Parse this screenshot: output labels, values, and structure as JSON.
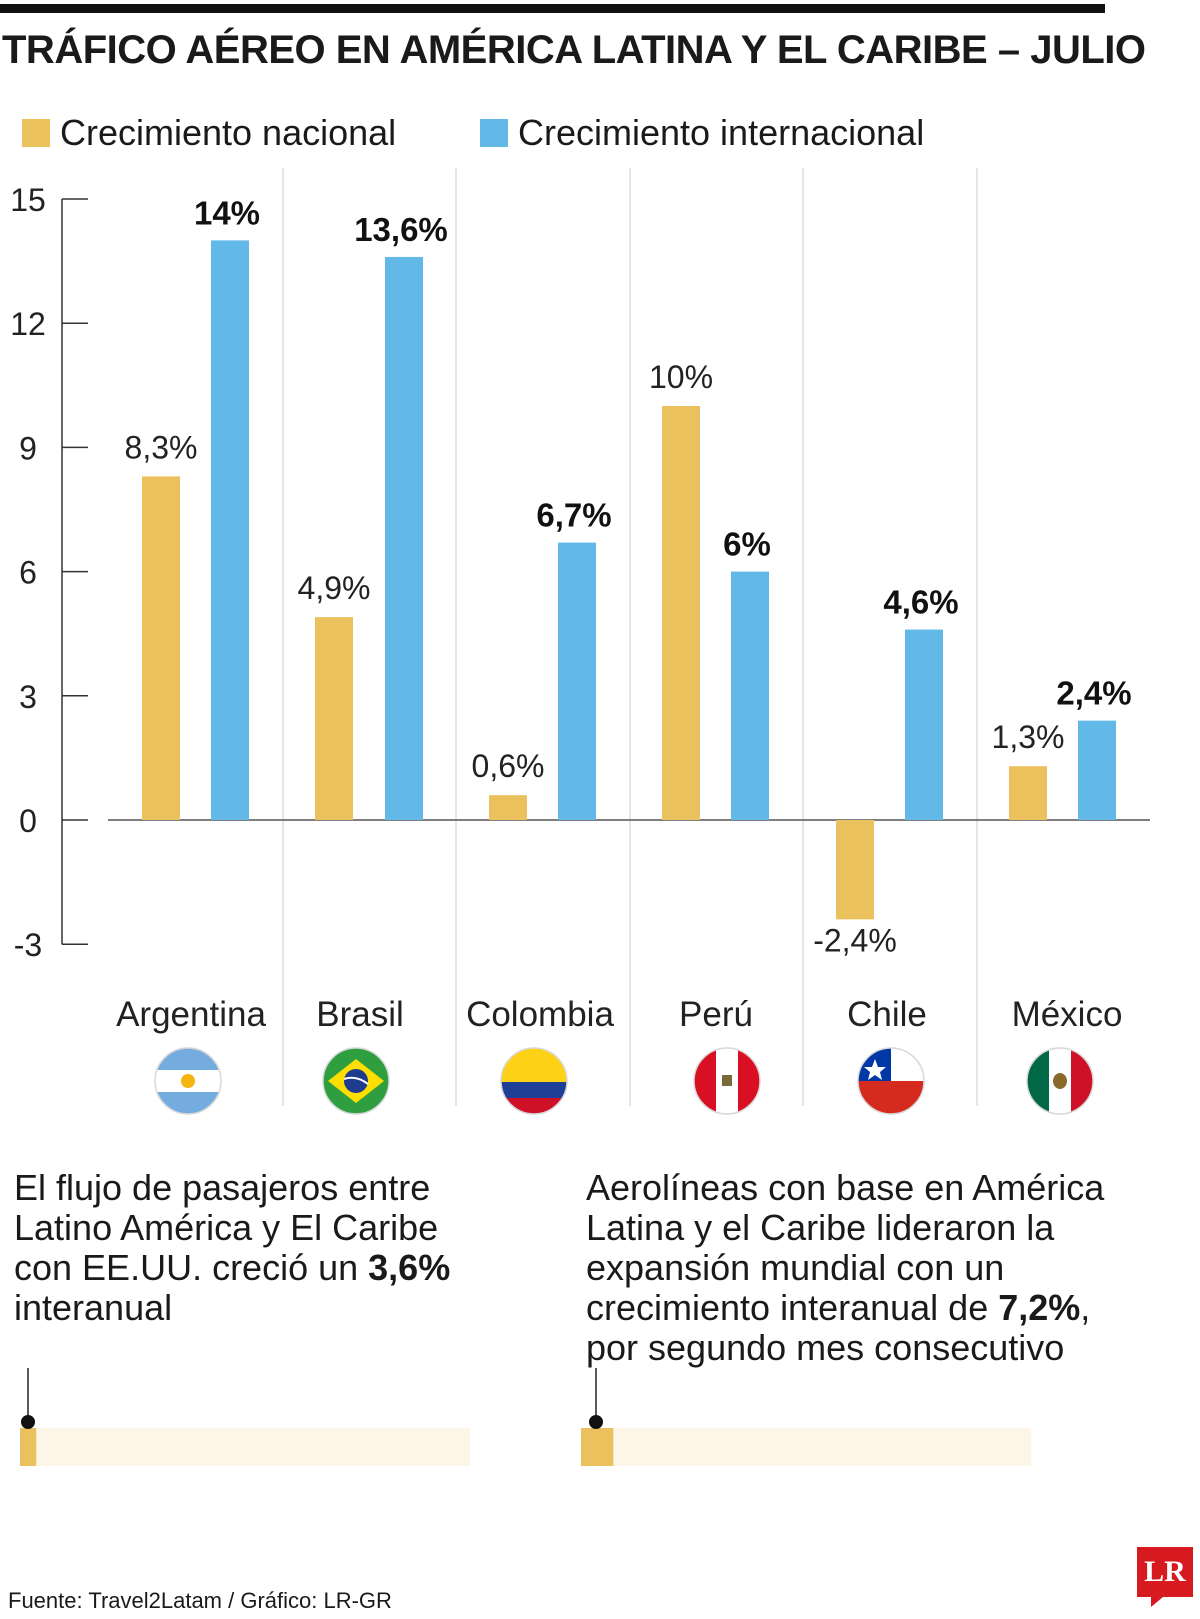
{
  "title": "TRÁFICO AÉREO EN AMÉRICA LATINA Y EL CARIBE – JULIO",
  "colors": {
    "nacional": "#EAC15C",
    "internacional": "#62B8E6",
    "bar_track": "#FDF6E8"
  },
  "chart_data": {
    "type": "bar",
    "title": "TRÁFICO AÉREO EN AMÉRICA LATINA Y EL CARIBE – JULIO",
    "categories": [
      "Argentina",
      "Brasil",
      "Colombia",
      "Perú",
      "Chile",
      "México"
    ],
    "series": [
      {
        "name": "Crecimiento nacional",
        "values": [
          8.3,
          4.9,
          0.6,
          10,
          -2.4,
          1.3
        ],
        "labels": [
          "8,3%",
          "4,9%",
          "0,6%",
          "10%",
          "-2,4%",
          "1,3%"
        ]
      },
      {
        "name": "Crecimiento internacional",
        "values": [
          14,
          13.6,
          6.7,
          6,
          4.6,
          2.4
        ],
        "labels": [
          "14%",
          "13,6%",
          "6,7%",
          "6%",
          "4,6%",
          "2,4%"
        ]
      }
    ],
    "yticks": [
      15,
      12,
      9,
      6,
      3,
      0,
      -3
    ],
    "ylim": [
      -3,
      15
    ],
    "xlabel": "",
    "ylabel": "",
    "legend": "top"
  },
  "notes": [
    {
      "before": "El flujo de pasajeros entre Latino América y El Caribe con EE.UU. creció un ",
      "highlight": "3,6%",
      "after": " interanual",
      "value": 3.6
    },
    {
      "before": "Aerolíneas con base en América Latina y el Caribe lideraron la expansión mundial con un crecimiento interanual de ",
      "highlight": "7,2%",
      "after": ", por segundo mes consecutivo",
      "value": 7.2
    }
  ],
  "source": "Fuente: Travel2Latam / Gráfico: LR-GR",
  "logo": "LR"
}
